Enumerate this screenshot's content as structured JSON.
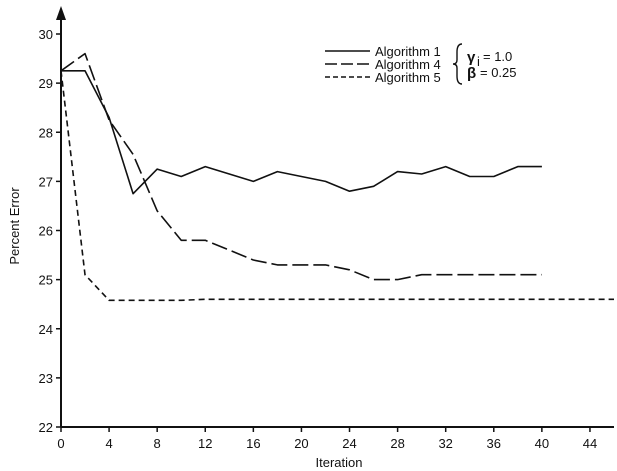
{
  "chart_data": {
    "type": "line",
    "xlabel": "Iteration",
    "ylabel": "Percent Error",
    "xlim": [
      0,
      46
    ],
    "ylim": [
      22,
      30.5
    ],
    "xticks": [
      0,
      4,
      8,
      12,
      16,
      20,
      24,
      28,
      32,
      36,
      40,
      44
    ],
    "yticks": [
      22,
      23,
      24,
      25,
      26,
      27,
      28,
      29,
      30
    ],
    "grid": false,
    "legend_position": "top-right",
    "series": [
      {
        "name": "Algorithm 1",
        "style": "solid",
        "x": [
          0,
          2,
          4,
          6,
          8,
          10,
          12,
          14,
          16,
          18,
          20,
          22,
          24,
          26,
          28,
          30,
          32,
          34,
          36,
          38,
          40
        ],
        "y": [
          29.25,
          29.25,
          28.3,
          26.75,
          27.25,
          27.1,
          27.3,
          27.15,
          27.0,
          27.2,
          27.1,
          27.0,
          26.8,
          26.9,
          27.2,
          27.15,
          27.3,
          27.1,
          27.1,
          27.3,
          27.3
        ]
      },
      {
        "name": "Algorithm 4",
        "style": "long-dash",
        "x": [
          0,
          2,
          4,
          6,
          8,
          10,
          12,
          14,
          16,
          18,
          20,
          22,
          24,
          26,
          28,
          30,
          32,
          34,
          36,
          38,
          40
        ],
        "y": [
          29.25,
          29.6,
          28.25,
          27.55,
          26.4,
          25.8,
          25.8,
          25.6,
          25.4,
          25.3,
          25.3,
          25.3,
          25.2,
          25.0,
          25.0,
          25.1,
          25.1,
          25.1,
          25.1,
          25.1,
          25.1
        ]
      },
      {
        "name": "Algorithm 5",
        "style": "short-dash",
        "x": [
          0,
          2,
          4,
          6,
          8,
          10,
          12,
          16,
          20,
          24,
          28,
          32,
          36,
          40,
          44,
          46
        ],
        "y": [
          29.25,
          25.1,
          24.58,
          24.58,
          24.58,
          24.58,
          24.6,
          24.6,
          24.6,
          24.6,
          24.6,
          24.6,
          24.6,
          24.6,
          24.6,
          24.6
        ]
      }
    ],
    "annotation": {
      "gamma_label": "1.0",
      "beta_label": "0.25"
    }
  }
}
